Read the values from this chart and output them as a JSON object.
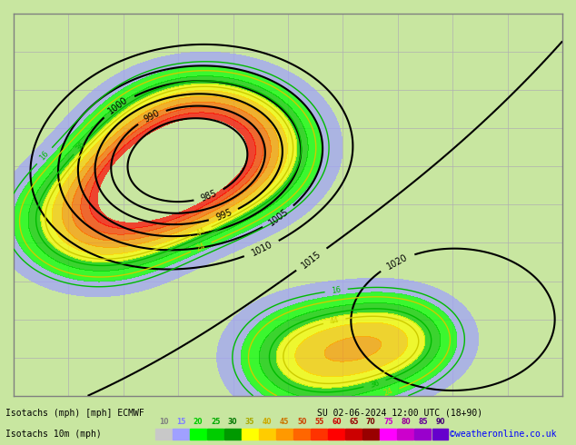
{
  "title_line1": "Isotachs (mph) [mph] ECMWF",
  "title_line2": "SU 02-06-2024 12:00 UTC (18+90)",
  "legend_title": "Isotachs 10m (mph)",
  "legend_values": [
    10,
    15,
    20,
    25,
    30,
    35,
    40,
    45,
    50,
    55,
    60,
    65,
    70,
    75,
    80,
    85,
    90
  ],
  "legend_colors": [
    "#c8c8c8",
    "#a0a0ff",
    "#00ff00",
    "#00cc00",
    "#009900",
    "#ffff00",
    "#ffcc00",
    "#ff9900",
    "#ff6600",
    "#ff3300",
    "#ff0000",
    "#cc0000",
    "#990000",
    "#ff00ff",
    "#cc00cc",
    "#9900cc",
    "#6600cc"
  ],
  "background_color": "#c8e6a0",
  "map_bg": "#c8e6a0",
  "border_color": "#808080",
  "axis_label_color": "#404040",
  "bottom_bar_bg": "#000080",
  "bottom_text_color": "#ffffff",
  "credit": "©weatheronline.co.uk",
  "credit_color": "#0000ff",
  "figsize": [
    6.34,
    4.9
  ],
  "dpi": 100,
  "grid_color": "#b0b0b0",
  "contour_color": "#000000",
  "isobar_color": "#000000"
}
